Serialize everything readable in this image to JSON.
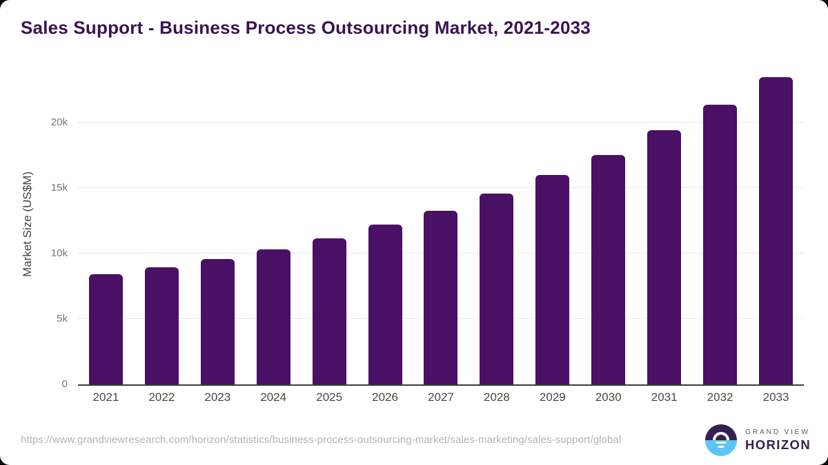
{
  "title": "Sales Support - Business Process Outsourcing Market, 2021-2033",
  "chart_data": {
    "type": "bar",
    "title": "Sales Support - Business Process Outsourcing Market, 2021-2033",
    "categories": [
      "2021",
      "2022",
      "2023",
      "2024",
      "2025",
      "2026",
      "2027",
      "2028",
      "2029",
      "2030",
      "2031",
      "2032",
      "2033"
    ],
    "values": [
      8400,
      8950,
      9600,
      10300,
      11150,
      12200,
      13250,
      14600,
      16000,
      17550,
      19400,
      21350,
      23500
    ],
    "xlabel": "",
    "ylabel": "Market Size (US$M)",
    "yticks": [
      {
        "label": "0",
        "value": 0
      },
      {
        "label": "5k",
        "value": 5000
      },
      {
        "label": "10k",
        "value": 10000
      },
      {
        "label": "15k",
        "value": 15000
      },
      {
        "label": "20k",
        "value": 20000
      }
    ],
    "ylim": [
      0,
      23750
    ],
    "grid": true,
    "legend": false,
    "bar_color": "#4a1065"
  },
  "footer": {
    "source_url": "https://www.grandviewresearch.com/horizon/statistics/business-process-outsourcing-market/sales-marketing/sales-support/global",
    "logo": {
      "icon": "sunset-horizon-icon",
      "line1": "GRAND VIEW",
      "line2": "HORIZON"
    }
  },
  "colors": {
    "page_background": "#000000",
    "card_background": "#ffffff",
    "title": "#3a1253",
    "bar": "#4a1065",
    "grid_line": "#e8e8e8",
    "axis_line": "#3a3a3a",
    "y_tick_text": "#757575",
    "x_tick_text": "#474747",
    "y_axis_title_text": "#424242",
    "source_text": "#b3b3b3",
    "logo_purple": "#35204e",
    "logo_blue": "#5bc6f2",
    "logo_gray_text": "#5e5565"
  }
}
